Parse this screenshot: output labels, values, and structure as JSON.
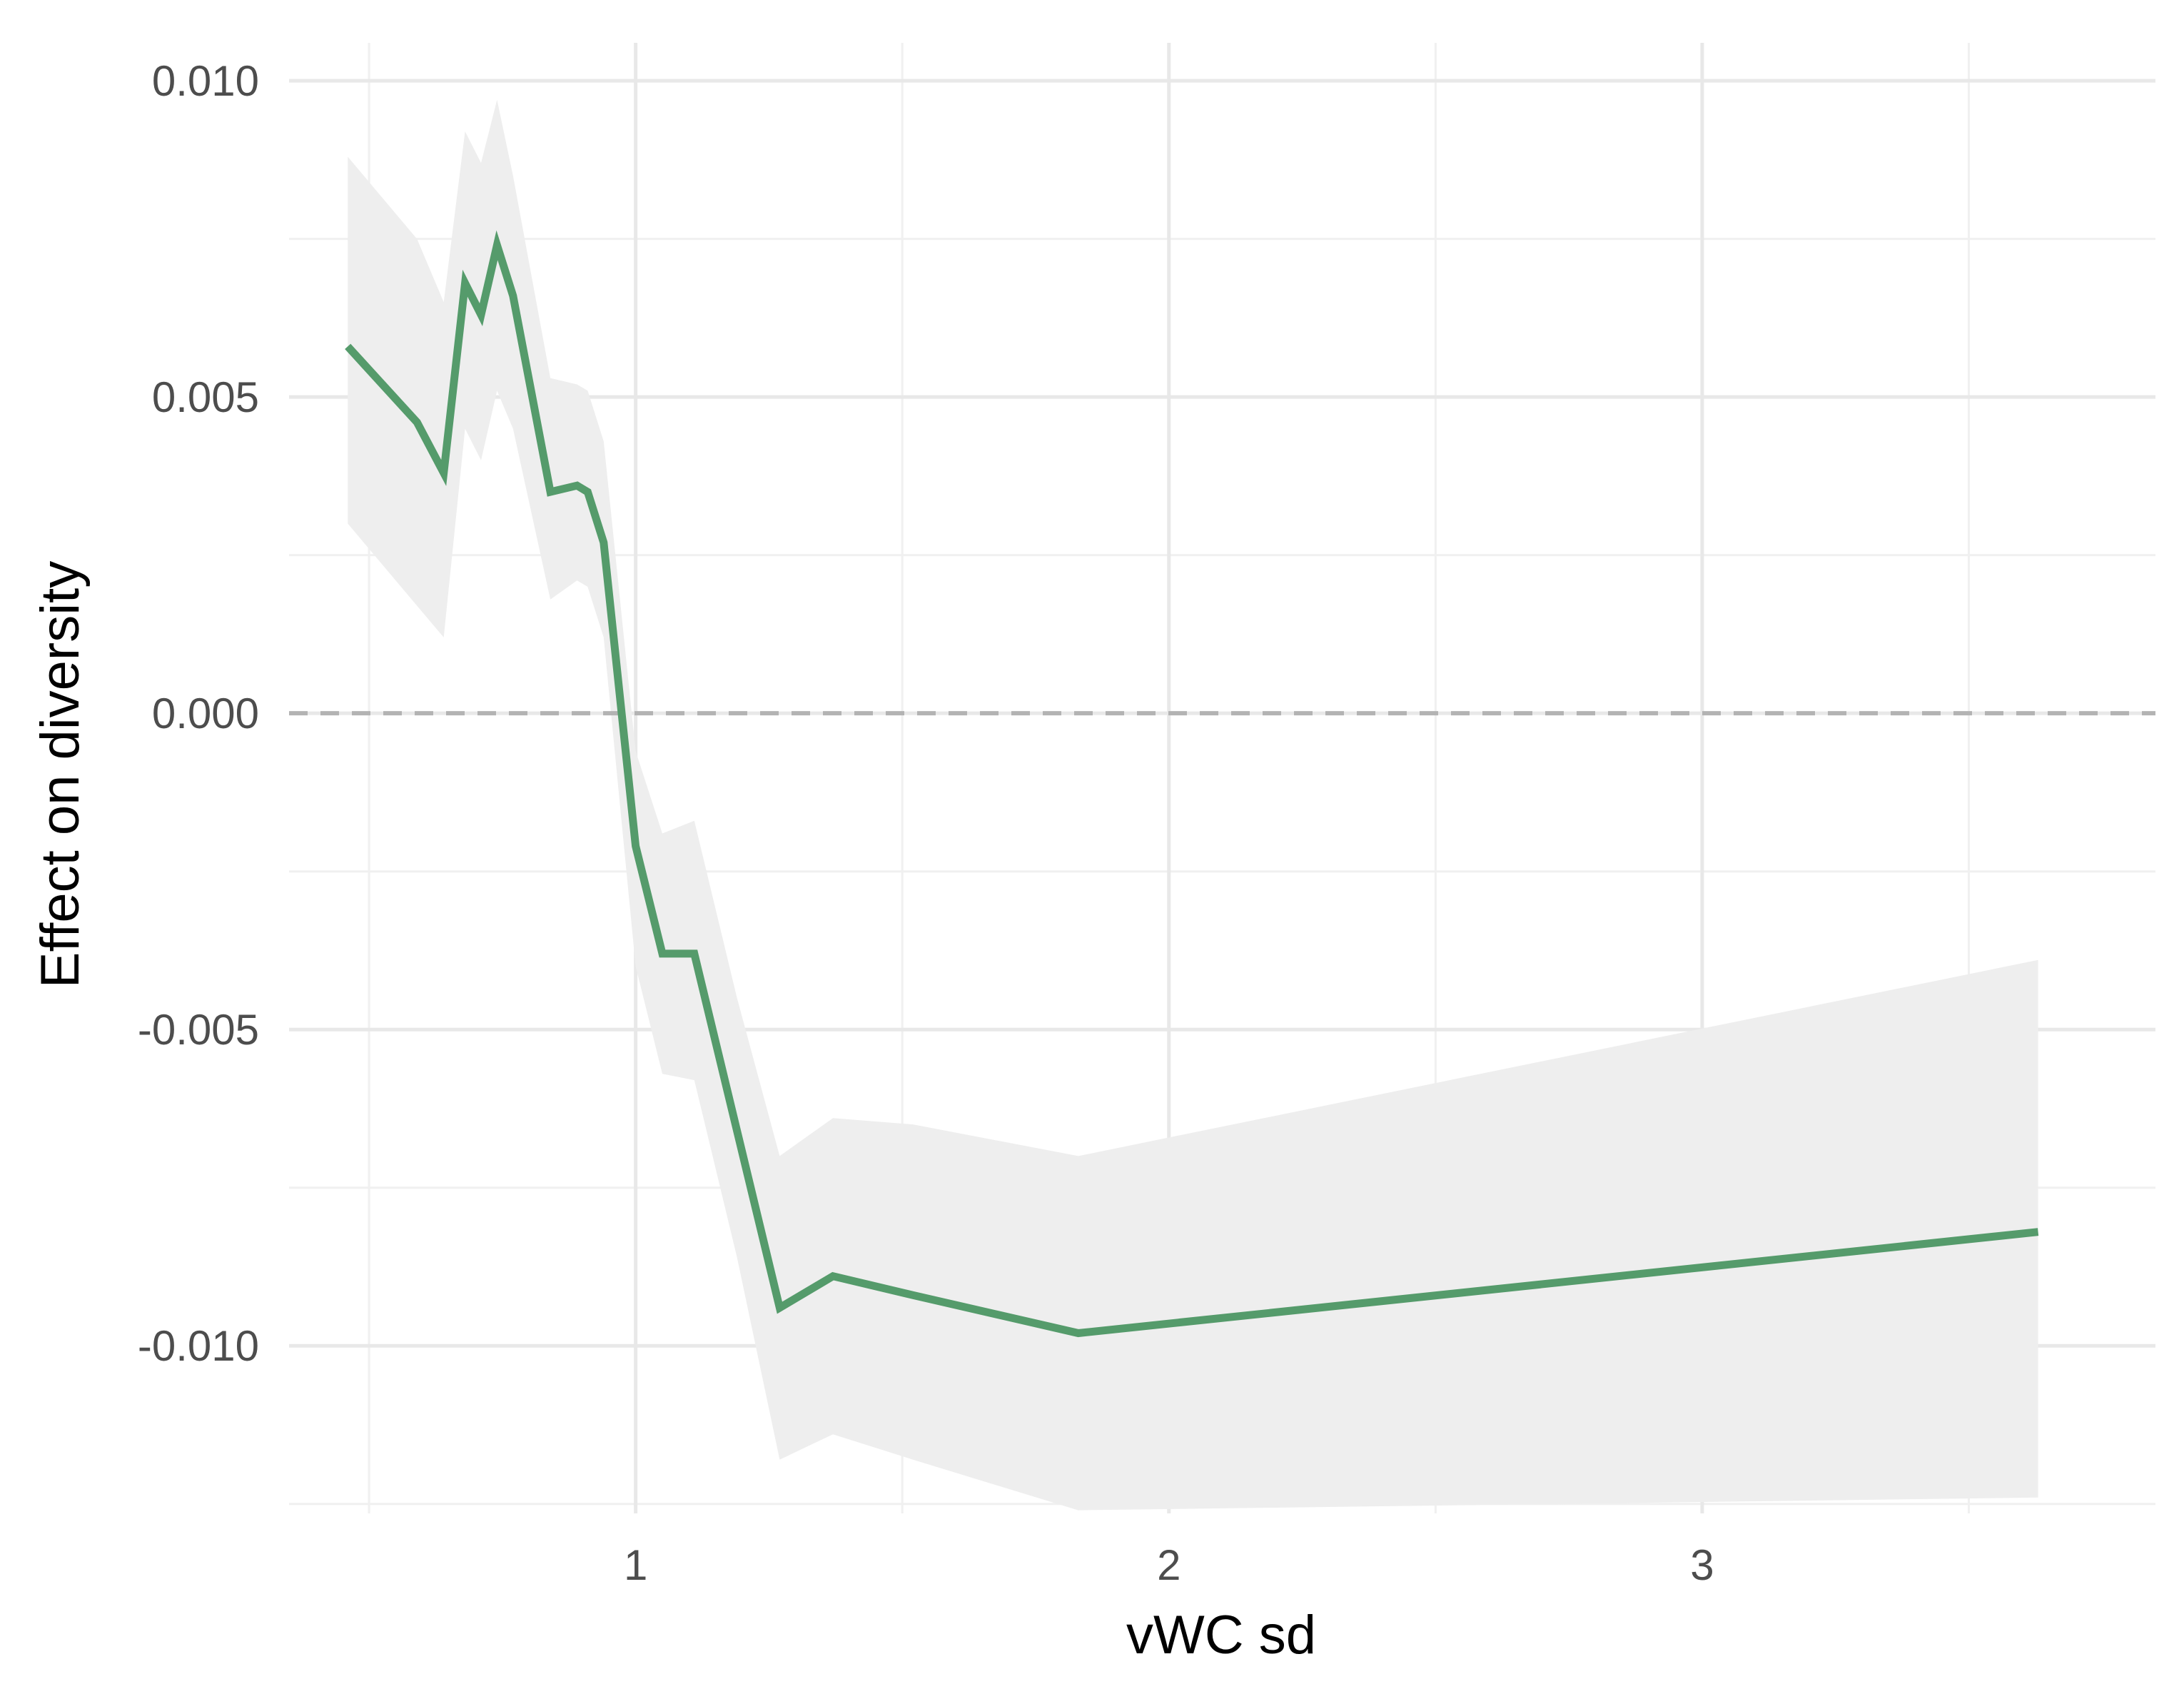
{
  "chart_data": {
    "type": "line",
    "title": "",
    "xlabel": "vWC sd",
    "ylabel": "Effect on diversity",
    "xlim": [
      0.35,
      3.85
    ],
    "ylim": [
      -0.01265,
      0.0106
    ],
    "x_ticks": [
      1,
      2,
      3
    ],
    "x_tick_labels": [
      "1",
      "2",
      "3"
    ],
    "x_minor_ticks": [
      0.5,
      1.5,
      2.5,
      3.5
    ],
    "y_ticks": [
      0.01,
      0.005,
      0.0,
      -0.005,
      -0.01
    ],
    "y_tick_labels": [
      "0.010",
      "0.005",
      "0.000",
      "-0.005",
      "-0.010"
    ],
    "y_minor_ticks": [
      0.0075,
      0.0025,
      -0.0025,
      -0.0075,
      -0.0125
    ],
    "grid": true,
    "reference_line": {
      "y": 0.0,
      "style": "dashed",
      "color": "#b3b3b3"
    },
    "colors": {
      "line": "#559b6b",
      "ribbon": "#eeeeee",
      "grid_major": "#e8e8e8",
      "grid_minor": "#f0f0f0"
    },
    "series": [
      {
        "x": [
          0.46,
          0.59,
          0.64,
          0.68,
          0.71,
          0.74,
          0.77,
          0.84,
          0.89,
          0.91,
          0.94,
          1.0,
          1.05,
          1.11,
          1.19,
          1.27,
          1.37,
          1.52,
          1.83,
          3.63
        ],
        "y": [
          0.0058,
          0.0046,
          0.0038,
          0.0068,
          0.0063,
          0.0074,
          0.0066,
          0.0035,
          0.0036,
          0.0035,
          0.0027,
          -0.0021,
          -0.0038,
          -0.0038,
          -0.0066,
          -0.0094,
          -0.0089,
          -0.0092,
          -0.0098,
          -0.0082
        ],
        "lower": [
          0.003,
          0.0017,
          0.0012,
          0.0045,
          0.004,
          0.0051,
          0.0045,
          0.0018,
          0.0021,
          0.002,
          0.0012,
          -0.004,
          -0.0057,
          -0.0058,
          -0.0086,
          -0.0118,
          -0.0114,
          -0.0118,
          -0.0126,
          -0.0124
        ],
        "upper": [
          0.0088,
          0.0075,
          0.0065,
          0.0092,
          0.0087,
          0.0097,
          0.0085,
          0.0053,
          0.0052,
          0.0051,
          0.0043,
          -0.0006,
          -0.0019,
          -0.0017,
          -0.0045,
          -0.007,
          -0.0064,
          -0.0065,
          -0.007,
          -0.0039
        ]
      }
    ]
  }
}
